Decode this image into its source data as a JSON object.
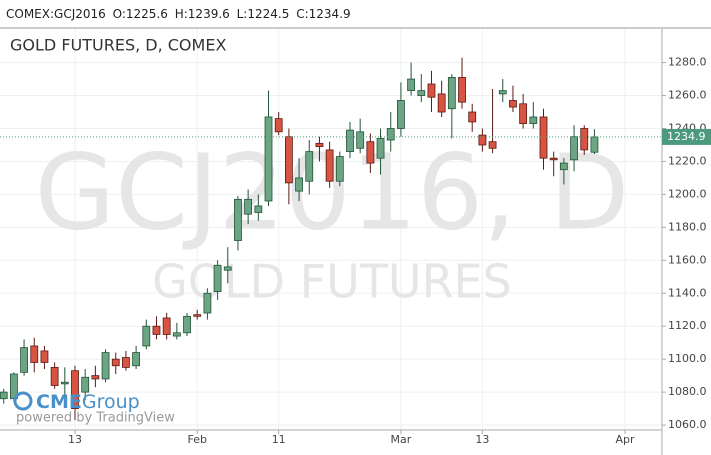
{
  "header": {
    "symbol": "COMEX:GCJ2016",
    "labels": [
      "O:",
      "H:",
      "L:",
      "C:"
    ]
  },
  "logo": {
    "brand": "CME",
    "suffix": "Group",
    "powered": "powered by TradingView"
  },
  "chart_data": {
    "type": "candlestick",
    "title": "GOLD FUTURES, D, COMEX",
    "watermark": [
      "GCJ2016, D",
      "GOLD FUTURES"
    ],
    "categories": [
      null,
      null,
      null,
      null,
      null,
      null,
      null,
      "13",
      null,
      null,
      null,
      null,
      null,
      null,
      null,
      null,
      null,
      null,
      null,
      "Feb",
      null,
      null,
      null,
      null,
      null,
      null,
      null,
      "11",
      null,
      null,
      null,
      null,
      null,
      null,
      null,
      null,
      null,
      null,
      null,
      "Mar",
      null,
      null,
      null,
      null,
      null,
      null,
      null,
      "13",
      null,
      null,
      null,
      null,
      null,
      null,
      null,
      null,
      null,
      null,
      null,
      null,
      null,
      "Apr",
      null,
      null,
      null
    ],
    "open": [
      1076,
      1076,
      1092,
      1108,
      1105,
      1095,
      1085,
      1093,
      1080,
      1090,
      1088,
      1100,
      1101,
      1096,
      1108,
      1120,
      1125,
      1114,
      1116,
      1127,
      1128,
      1141,
      1154,
      1172,
      1188,
      1189,
      1196,
      1246,
      1235,
      1202,
      1208,
      1231,
      1227,
      1208,
      1226,
      1228,
      1232,
      1222,
      1233,
      1240,
      1263,
      1260,
      1267,
      1261,
      1252,
      1271,
      1250,
      1236,
      1232,
      1261,
      1257,
      1255,
      1243,
      1247,
      1222,
      1215,
      1221,
      1240,
      1225.6,
      null,
      null,
      null,
      null,
      null,
      null
    ],
    "high": [
      1082,
      1092,
      1112,
      1113,
      1108,
      1098,
      1095,
      1096,
      1094,
      1096,
      1106,
      1104,
      1105,
      1108,
      1124,
      1126,
      1128,
      1122,
      1128,
      1130,
      1143,
      1160,
      1168,
      1199,
      1203,
      1200,
      1263,
      1250,
      1240,
      1222,
      1233,
      1235,
      1232,
      1226,
      1244,
      1246,
      1237,
      1240,
      1250,
      1268,
      1280,
      1273,
      1275,
      1269,
      1273,
      1283,
      1255,
      1240,
      1264,
      1270,
      1266,
      1261,
      1256,
      1252,
      1226,
      1222,
      1242,
      1242,
      1239.6,
      null,
      null,
      null,
      null,
      null,
      null
    ],
    "low": [
      1073,
      1074,
      1090,
      1092,
      1094,
      1082,
      1078,
      1063,
      1075,
      1083,
      1086,
      1091,
      1093,
      1094,
      1106,
      1112,
      1112,
      1112,
      1114,
      1124,
      1124,
      1136,
      1146,
      1166,
      1182,
      1184,
      1193,
      1236,
      1194,
      1196,
      1200,
      1220,
      1204,
      1205,
      1222,
      1225,
      1213,
      1212,
      1226,
      1235,
      1260,
      1256,
      1250,
      1247,
      1234,
      1252,
      1238,
      1226,
      1225,
      1256,
      1250,
      1240,
      1240,
      1215,
      1211,
      1206,
      1214,
      1224,
      1224.5,
      null,
      null,
      null,
      null,
      null,
      null
    ],
    "close": [
      1080,
      1091,
      1107,
      1098,
      1098,
      1084,
      1086,
      1070,
      1089,
      1088,
      1104,
      1096,
      1095,
      1104,
      1120,
      1115,
      1115,
      1116,
      1126,
      1126,
      1140,
      1157,
      1156,
      1197,
      1197,
      1193,
      1247,
      1238,
      1207,
      1210,
      1226,
      1229,
      1208,
      1223,
      1239,
      1238,
      1219,
      1234,
      1240,
      1257,
      1270,
      1263,
      1259,
      1250,
      1271,
      1256,
      1244,
      1230,
      1228,
      1263,
      1253,
      1243,
      1247,
      1222,
      1221,
      1219,
      1235,
      1227,
      1234.9,
      null,
      null,
      null,
      null,
      null,
      null
    ],
    "up_color": "#6ba583",
    "down_color": "#d75442",
    "last_price_color": "#4c9a7e",
    "ylim": [
      1057,
      1301
    ],
    "yticks": [
      {
        "value": 1060,
        "label": "1060.0"
      },
      {
        "value": 1080,
        "label": "1080.0"
      },
      {
        "value": 1100,
        "label": "1100.0"
      },
      {
        "value": 1120,
        "label": "1120.0"
      },
      {
        "value": 1140,
        "label": "1140.0"
      },
      {
        "value": 1160,
        "label": "1160.0"
      },
      {
        "value": 1180,
        "label": "1180.0"
      },
      {
        "value": 1200,
        "label": "1200.0"
      },
      {
        "value": 1220,
        "label": "1220.0"
      },
      {
        "value": 1240,
        "label": "1240.0"
      },
      {
        "value": 1260,
        "label": "1260.0"
      },
      {
        "value": 1280,
        "label": "1280.0"
      }
    ],
    "grid": true,
    "last_price_line": true
  }
}
